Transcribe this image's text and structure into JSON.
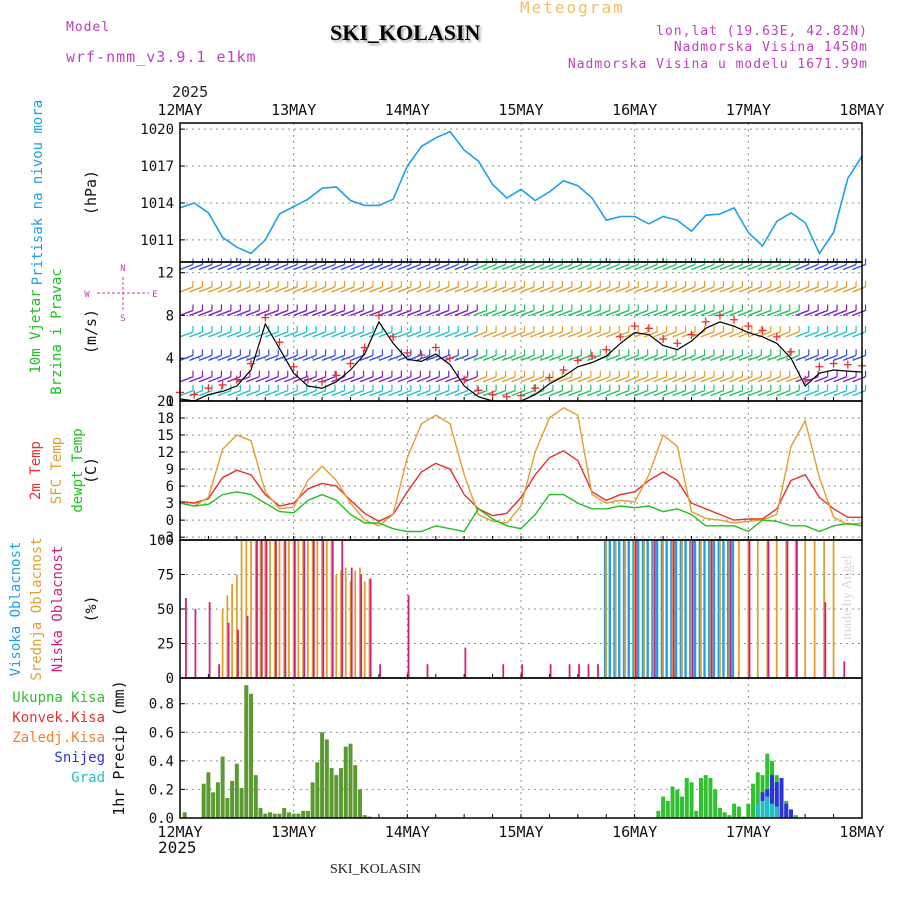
{
  "header": {
    "model_label": "Model",
    "model_name": "wrf-nmm_v3.9.1 e1km",
    "title": "SKI_KOLASIN",
    "meteogram": "Meteogram",
    "lonlat": "lon,lat (19.63E, 42.82N)",
    "elevation": "Nadmorska Visina 1450m",
    "model_elevation": "Nadmorska Visina u modelu 1671.99m",
    "year_top": "2025",
    "year_bottom": "2025",
    "footer": "SKI_KOLASIN",
    "made_by": "made by Angel"
  },
  "colors": {
    "pressure": "#1ea0e8",
    "wind_speed": "#e83030",
    "wind_speed_line": "#000000",
    "t2m": "#e83030",
    "tsfc": "#e0a030",
    "dewpt": "#20c020",
    "high_cloud": "#20a0e8",
    "mid_cloud": "#e0a030",
    "low_cloud": "#d02080",
    "total_precip": "#30c030",
    "conv_precip": "#e83030",
    "frozen_precip": "#f08030",
    "snow": "#3030e0",
    "hail": "#20c0c0",
    "axis_label_purple": "#c040c0"
  },
  "chart_data": [
    {
      "type": "line",
      "panel": "pressure",
      "ylabel": "(hPa)",
      "side_label": [
        "Pritisak na nivou mora"
      ],
      "x_ticks": [
        "12MAY",
        "13MAY",
        "14MAY",
        "15MAY",
        "16MAY",
        "17MAY",
        "18MAY"
      ],
      "y_ticks": [
        1011,
        1014,
        1017,
        1020
      ],
      "ylim": [
        1009.2,
        1020.5
      ],
      "x_hours": [
        0,
        3,
        6,
        9,
        12,
        15,
        18,
        21,
        24,
        27,
        30,
        33,
        36,
        39,
        42,
        45,
        48,
        51,
        54,
        57,
        60,
        63,
        66,
        69,
        72,
        75,
        78,
        81,
        84,
        87,
        90,
        93,
        96,
        99,
        102,
        105,
        108,
        111,
        114,
        117,
        120,
        123,
        126,
        129,
        132,
        135,
        138,
        141,
        144
      ],
      "values": [
        1013.6,
        1014.0,
        1013.2,
        1011.2,
        1010.4,
        1009.9,
        1011.0,
        1013.1,
        1013.7,
        1014.3,
        1015.2,
        1015.3,
        1014.2,
        1013.8,
        1013.8,
        1014.3,
        1017.0,
        1018.6,
        1019.3,
        1019.8,
        1018.3,
        1017.4,
        1015.5,
        1014.4,
        1015.1,
        1014.2,
        1014.9,
        1015.8,
        1015.4,
        1014.4,
        1012.6,
        1012.9,
        1012.9,
        1012.3,
        1012.9,
        1012.6,
        1011.7,
        1013.0,
        1013.1,
        1013.6,
        1011.6,
        1010.5,
        1012.5,
        1013.2,
        1012.4,
        1009.9,
        1011.6,
        1016.0,
        1017.8
      ],
      "grid": true
    },
    {
      "type": "line",
      "panel": "wind",
      "ylabel": "(m/s)",
      "side_label": [
        "10m Vjetar",
        "Brzina i Pravac"
      ],
      "compass": [
        "N",
        "W",
        "E",
        "S"
      ],
      "y_ticks": [
        0,
        4,
        8,
        12
      ],
      "ylim": [
        0,
        13
      ],
      "x_hours": [
        0,
        3,
        6,
        9,
        12,
        15,
        18,
        21,
        24,
        27,
        30,
        33,
        36,
        39,
        42,
        45,
        48,
        51,
        54,
        57,
        60,
        63,
        66,
        69,
        72,
        75,
        78,
        81,
        84,
        87,
        90,
        93,
        96,
        99,
        102,
        105,
        108,
        111,
        114,
        117,
        120,
        123,
        126,
        129,
        132,
        135,
        138,
        141,
        144
      ],
      "series": [
        {
          "values": [
            0.8,
            0.6,
            1.2,
            1.5,
            2.0,
            3.5,
            7.8,
            5.5,
            3.2,
            2.0,
            1.8,
            2.4,
            3.5,
            5.0,
            8.0,
            6.0,
            4.5,
            4.3,
            5.0,
            4.0,
            2.0,
            1.0,
            0.6,
            0.4,
            0.5,
            1.2,
            2.2,
            2.9,
            3.8,
            4.2,
            4.8,
            6.0,
            7.0,
            6.8,
            5.8,
            5.4,
            6.2,
            7.4,
            8.0,
            7.6,
            7.0,
            6.6,
            6.0,
            4.6,
            2.0,
            3.2,
            3.5,
            3.4,
            3.3
          ]
        }
      ],
      "grid": true
    },
    {
      "type": "line",
      "panel": "temperature",
      "ylabel": "(C)",
      "side_label": [
        "2m Temp",
        "SFC Temp",
        "dewpt Temp"
      ],
      "y_ticks": [
        -3,
        0,
        3,
        6,
        9,
        12,
        15,
        18,
        21
      ],
      "ylim": [
        -3.5,
        21
      ],
      "x_hours": [
        0,
        3,
        6,
        9,
        12,
        15,
        18,
        21,
        24,
        27,
        30,
        33,
        36,
        39,
        42,
        45,
        48,
        51,
        54,
        57,
        60,
        63,
        66,
        69,
        72,
        75,
        78,
        81,
        84,
        87,
        90,
        93,
        96,
        99,
        102,
        105,
        108,
        111,
        114,
        117,
        120,
        123,
        126,
        129,
        132,
        135,
        138,
        141,
        144
      ],
      "series": [
        {
          "name": "2m Temp",
          "values": [
            3.3,
            3.0,
            3.8,
            7.5,
            8.8,
            8.0,
            4.5,
            2.5,
            3.0,
            5.5,
            6.5,
            6.0,
            3.5,
            1.2,
            -0.2,
            1.0,
            5.0,
            8.5,
            10.0,
            9.0,
            4.5,
            2.0,
            0.8,
            1.2,
            4.0,
            8.0,
            11.0,
            12.2,
            10.5,
            5.0,
            3.5,
            4.5,
            5.0,
            7.0,
            8.5,
            7.0,
            3.0,
            2.0,
            1.0,
            0.0,
            0.2,
            0.2,
            2.0,
            7.0,
            8.0,
            4.0,
            2.0,
            0.5,
            0.5
          ]
        },
        {
          "name": "SFC Temp",
          "values": [
            3.0,
            2.5,
            4.0,
            12.5,
            15.0,
            14.0,
            5.0,
            2.0,
            2.3,
            7.0,
            9.5,
            7.0,
            3.0,
            0.0,
            -1.0,
            1.0,
            11.0,
            17.0,
            18.5,
            17.0,
            8.0,
            1.0,
            -0.2,
            -0.5,
            2.5,
            12.0,
            18.0,
            19.8,
            18.5,
            4.5,
            3.0,
            3.5,
            3.2,
            8.0,
            15.0,
            13.0,
            1.5,
            0.3,
            0.0,
            -0.5,
            -0.2,
            0.0,
            1.0,
            13.0,
            17.5,
            7.5,
            0.5,
            -0.8,
            -0.5
          ]
        },
        {
          "name": "dewpt Temp",
          "values": [
            3.0,
            2.5,
            2.8,
            4.5,
            5.0,
            4.5,
            3.0,
            1.5,
            1.3,
            3.5,
            4.5,
            3.5,
            1.0,
            -0.5,
            -0.5,
            -1.5,
            -2.0,
            -2.0,
            -1.0,
            -1.5,
            -2.0,
            2.0,
            0.2,
            -1.0,
            -1.5,
            1.0,
            4.5,
            4.5,
            3.0,
            2.0,
            2.0,
            2.5,
            2.2,
            2.5,
            1.5,
            2.0,
            1.0,
            -1.0,
            -1.0,
            -1.0,
            -2.0,
            0.0,
            -0.2,
            -1.0,
            -1.0,
            -2.0,
            -1.0,
            -0.6,
            -1.0
          ]
        }
      ],
      "grid": true
    },
    {
      "type": "bar",
      "panel": "clouds",
      "ylabel": "(%)",
      "side_label": [
        "Visoka Oblacnost",
        "Srednja Oblacnost",
        "Niska Oblacnost"
      ],
      "y_ticks": [
        0,
        25,
        50,
        75,
        100
      ],
      "ylim": [
        0,
        100
      ],
      "series": [
        {
          "name": "Visoka Oblacnost",
          "x_hours": [
            90,
            91,
            92,
            93,
            94,
            95,
            96,
            97,
            98,
            99,
            100,
            101,
            102,
            103,
            104,
            105,
            106,
            107,
            108,
            109,
            110,
            111,
            112,
            113,
            114,
            115,
            116,
            117
          ],
          "values": [
            100,
            100,
            100,
            100,
            100,
            100,
            100,
            100,
            100,
            100,
            100,
            100,
            100,
            100,
            100,
            100,
            100,
            100,
            100,
            100,
            100,
            100,
            100,
            100,
            100,
            100,
            100,
            100
          ]
        },
        {
          "name": "Srednja Oblacnost",
          "x_hours": [
            9,
            10,
            11,
            12,
            13,
            14,
            15,
            16,
            17,
            18,
            19,
            20,
            21,
            22,
            23,
            24,
            25,
            26,
            27,
            28,
            29,
            30,
            31,
            32,
            33,
            34,
            35,
            36,
            37,
            38,
            39,
            40,
            90,
            92,
            94,
            96,
            98,
            100,
            102,
            104,
            106,
            108,
            110,
            112,
            114,
            116,
            118,
            120,
            122,
            124,
            126,
            128,
            130,
            132,
            134,
            136,
            138
          ],
          "values": [
            50,
            60,
            68,
            75,
            100,
            100,
            100,
            100,
            100,
            100,
            100,
            100,
            100,
            100,
            100,
            100,
            100,
            100,
            100,
            100,
            100,
            100,
            100,
            100,
            75,
            78,
            80,
            70,
            78,
            80,
            70,
            72,
            100,
            100,
            100,
            100,
            100,
            100,
            100,
            100,
            100,
            100,
            100,
            100,
            100,
            100,
            100,
            100,
            100,
            100,
            100,
            100,
            100,
            100,
            100,
            100,
            100
          ]
        },
        {
          "name": "Niska Oblacnost",
          "x_hours": [
            1,
            3,
            6,
            8,
            10,
            12,
            14,
            16,
            17,
            18,
            20,
            22,
            24,
            26,
            28,
            30,
            32,
            34,
            36,
            38,
            40,
            42,
            48,
            52,
            60,
            68,
            72,
            78,
            82,
            84,
            86,
            88,
            96,
            100,
            104,
            108,
            112,
            116,
            120,
            124,
            128,
            130,
            136,
            140
          ],
          "values": [
            58,
            50,
            55,
            10,
            40,
            35,
            45,
            100,
            100,
            100,
            100,
            100,
            100,
            100,
            100,
            100,
            100,
            100,
            80,
            75,
            72,
            10,
            60,
            10,
            22,
            10,
            10,
            10,
            10,
            10,
            10,
            10,
            100,
            100,
            100,
            100,
            100,
            100,
            100,
            100,
            100,
            100,
            55,
            12
          ]
        }
      ],
      "grid": true
    },
    {
      "type": "bar",
      "panel": "precipitation",
      "ylabel": "1hr Precip (mm)",
      "side_label": [
        "Ukupna Kisa",
        "Konvek.Kisa",
        "Zaledj.Kisa",
        "Snijeg",
        "Grad"
      ],
      "y_ticks": [
        0.0,
        0.2,
        0.4,
        0.6,
        0.8
      ],
      "ylim": [
        0,
        0.98
      ],
      "series": [
        {
          "name": "Ukupna Kisa",
          "x_hours": [
            1,
            5,
            6,
            7,
            8,
            9,
            10,
            11,
            12,
            13,
            14,
            15,
            16,
            17,
            18,
            19,
            20,
            21,
            22,
            23,
            24,
            25,
            26,
            27,
            28,
            29,
            30,
            31,
            32,
            33,
            34,
            35,
            36,
            37,
            38,
            39,
            40,
            101,
            102,
            103,
            104,
            105,
            106,
            107,
            108,
            109,
            110,
            111,
            112,
            113,
            114,
            115,
            116,
            117,
            118,
            119,
            120,
            121,
            122,
            123,
            124,
            125,
            126,
            127,
            128,
            129,
            130
          ],
          "values": [
            0.04,
            0.24,
            0.32,
            0.18,
            0.25,
            0.43,
            0.14,
            0.26,
            0.38,
            0.21,
            0.93,
            0.87,
            0.3,
            0.07,
            0.03,
            0.04,
            0.03,
            0.03,
            0.07,
            0.04,
            0.03,
            0.03,
            0.05,
            0.05,
            0.25,
            0.39,
            0.6,
            0.55,
            0.35,
            0.3,
            0.35,
            0.5,
            0.52,
            0.37,
            0.2,
            0.02,
            0.01,
            0.05,
            0.15,
            0.12,
            0.22,
            0.2,
            0.15,
            0.28,
            0.25,
            0.05,
            0.28,
            0.3,
            0.28,
            0.2,
            0.07,
            0.04,
            0.02,
            0.1,
            0.08,
            0.01,
            0.1,
            0.24,
            0.32,
            0.3,
            0.45,
            0.4,
            0.3,
            0.25,
            0.12,
            0.06,
            0.02
          ]
        },
        {
          "name": "Snijeg",
          "x_hours": [
            123,
            124,
            125,
            126,
            127,
            128,
            129
          ],
          "values": [
            0.18,
            0.2,
            0.3,
            0.25,
            0.28,
            0.1,
            0.06
          ]
        },
        {
          "name": "Grad",
          "x_hours": [
            122,
            123,
            124,
            125,
            126
          ],
          "values": [
            0.1,
            0.12,
            0.15,
            0.1,
            0.08
          ]
        }
      ],
      "x_ticks": [
        "12MAY",
        "13MAY",
        "14MAY",
        "15MAY",
        "16MAY",
        "17MAY",
        "18MAY"
      ],
      "grid": true
    }
  ]
}
